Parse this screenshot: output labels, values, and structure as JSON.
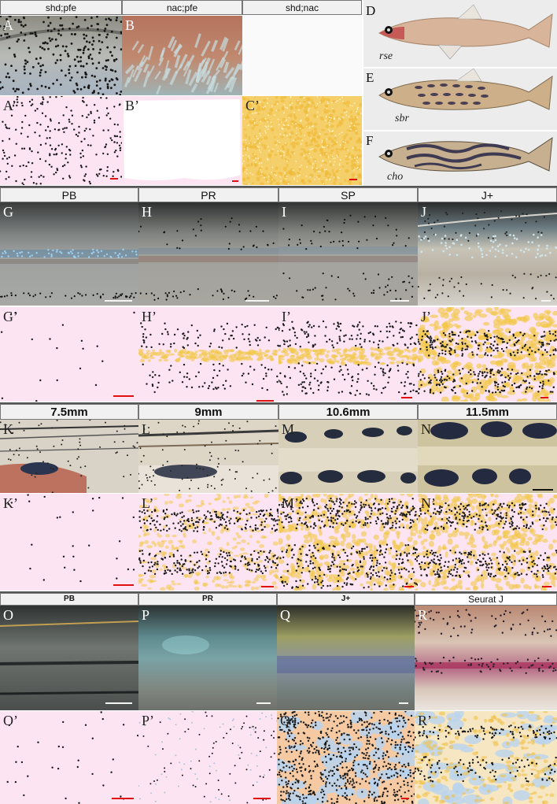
{
  "headers": {
    "row1": [
      "shd;pfe",
      "nac;pfe",
      "shd;nac"
    ],
    "row2": [
      "PB",
      "PR",
      "SP",
      "J+"
    ],
    "row3": [
      "7.5mm",
      "9mm",
      "10.6mm",
      "11.5mm"
    ],
    "row4": [
      "PB",
      "PR",
      "J+",
      "Seurat J"
    ]
  },
  "panel_labels": {
    "A": "A",
    "B": "B",
    "A2": "A’",
    "B2": "B’",
    "C2": "C’",
    "D": "D",
    "E": "E",
    "F": "F",
    "G": "G",
    "H": "H",
    "I": "I",
    "J": "J",
    "G2": "G’",
    "H2": "H’",
    "I2": "I’",
    "J2": "J’",
    "K": "K",
    "L": "L",
    "M": "M",
    "N": "N",
    "K2": "K’",
    "L2": "L’",
    "M2": "M’",
    "N2": "N’",
    "O": "O",
    "P": "P",
    "Q": "Q",
    "R": "R",
    "O2": "O’",
    "P2": "P’",
    "Q2": "Q’",
    "R2": "R’"
  },
  "fish_captions": {
    "D": "rse",
    "E": "sbr",
    "F": "cho"
  },
  "colors": {
    "sim_background": "#fde4f2",
    "melanophore": "#1a1a1a",
    "xanthophore": "#f2c84a",
    "iridophore": "#b9d4ee",
    "scale_bar_sim": "#e01010",
    "scale_bar_photo": "#f4f4f4"
  }
}
